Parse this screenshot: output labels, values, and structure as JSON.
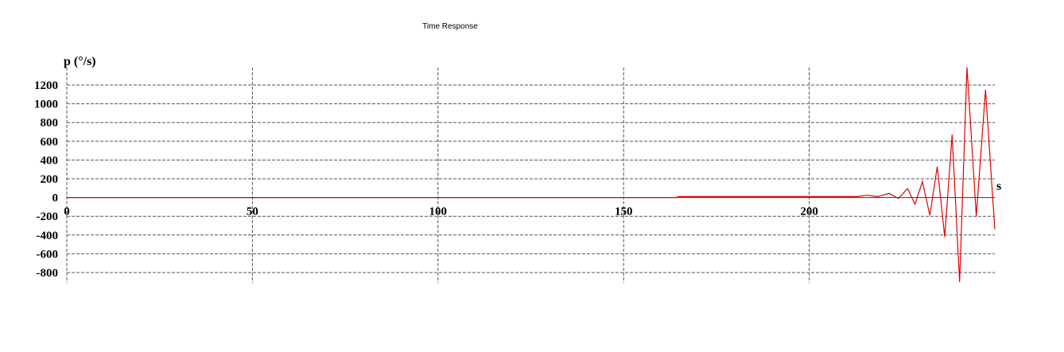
{
  "chart_data": {
    "type": "line",
    "title": "Time Response",
    "ylabel": "p (°/s)",
    "xlabel": "s",
    "xlim": [
      0,
      250
    ],
    "ylim": [
      -800,
      1200
    ],
    "x_ticks": [
      0,
      50,
      100,
      150,
      200
    ],
    "y_ticks": [
      1200,
      1000,
      800,
      600,
      400,
      200,
      0,
      -200,
      -400,
      -600,
      -800
    ],
    "x_tick_labels": [
      "0",
      "50",
      "100",
      "150",
      "200"
    ],
    "y_tick_labels": [
      "1200",
      "1000",
      "800",
      "600",
      "400",
      "200",
      "0",
      "-200",
      "-400",
      "-600",
      "-800"
    ],
    "grid": true,
    "series_color": "#e00000",
    "series": [
      {
        "x": [
          0,
          164,
          165,
          213,
          215.5,
          218.5,
          221.5,
          224,
          226.5,
          228.5,
          230.5,
          232.5,
          234.5,
          236.5,
          238.5,
          240.5,
          242.5,
          245,
          247.5,
          250
        ],
        "y": [
          0,
          0,
          10,
          10,
          25,
          10,
          45,
          -10,
          95,
          -70,
          170,
          -190,
          330,
          -420,
          670,
          -900,
          1390,
          -200,
          1150,
          -340
        ]
      }
    ]
  }
}
